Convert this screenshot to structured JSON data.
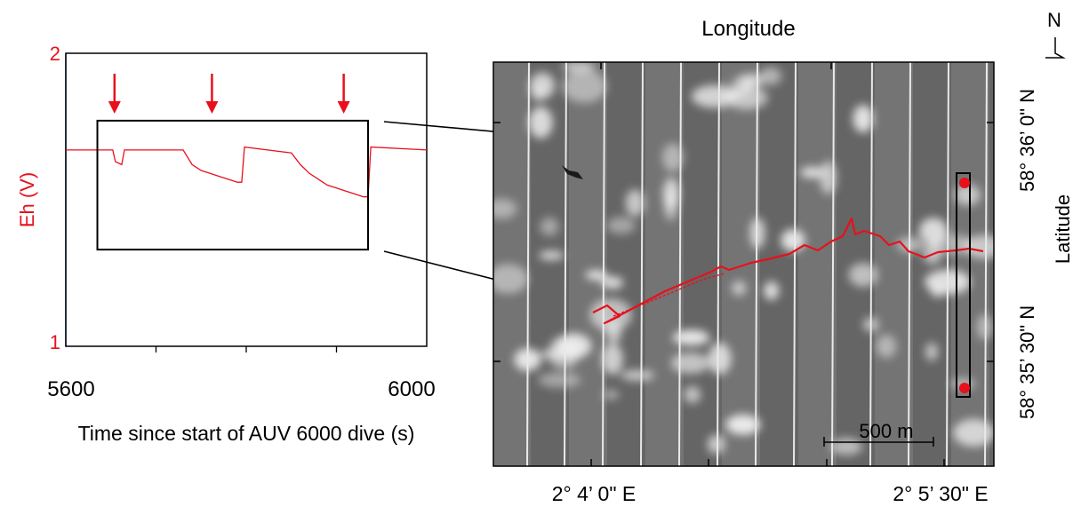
{
  "colors": {
    "accent": "#e8101c",
    "frame": "#000000",
    "map_background": "#6f6f6f"
  },
  "north_arrow": {
    "label": "N"
  },
  "chart_data": [
    {
      "type": "line",
      "title": "",
      "xlabel": "Time since start of AUV 6000 dive (s)",
      "ylabel": "Eh (V)",
      "xlim": [
        5600,
        6000
      ],
      "ylim": [
        1,
        2
      ],
      "x_tick_labels": [
        "5600",
        "6000"
      ],
      "y_tick_labels": [
        "2",
        "1"
      ],
      "grid": false,
      "series": [
        {
          "x": [
            5600,
            5652,
            5655,
            5662,
            5665,
            5670,
            5730,
            5740,
            5750,
            5760,
            5770,
            5780,
            5790,
            5795,
            5798,
            5850,
            5860,
            5870,
            5880,
            5890,
            5900,
            5910,
            5920,
            5930,
            5935,
            5938,
            6000
          ],
          "y": [
            1.67,
            1.67,
            1.63,
            1.62,
            1.67,
            1.67,
            1.67,
            1.62,
            1.6,
            1.59,
            1.58,
            1.57,
            1.56,
            1.56,
            1.68,
            1.66,
            1.62,
            1.59,
            1.57,
            1.55,
            1.54,
            1.53,
            1.52,
            1.51,
            1.51,
            1.68,
            1.67
          ]
        }
      ],
      "arrows_x": [
        5654,
        5762,
        5908
      ],
      "highlight_box": {
        "x": [
          5635,
          5935
        ],
        "y": [
          1.33,
          1.77
        ]
      }
    },
    {
      "type": "map",
      "title": "Longitude",
      "xlabel": "Longitude",
      "ylabel": "Latitude",
      "x_tick_labels": [
        "2° 4’ 0\" E",
        "2° 5’ 30\" E"
      ],
      "y_tick_labels": [
        "58° 36’ 0\" N",
        "58° 35’ 30\" N"
      ],
      "scale_bar": "500 m",
      "legend": "none"
    }
  ]
}
